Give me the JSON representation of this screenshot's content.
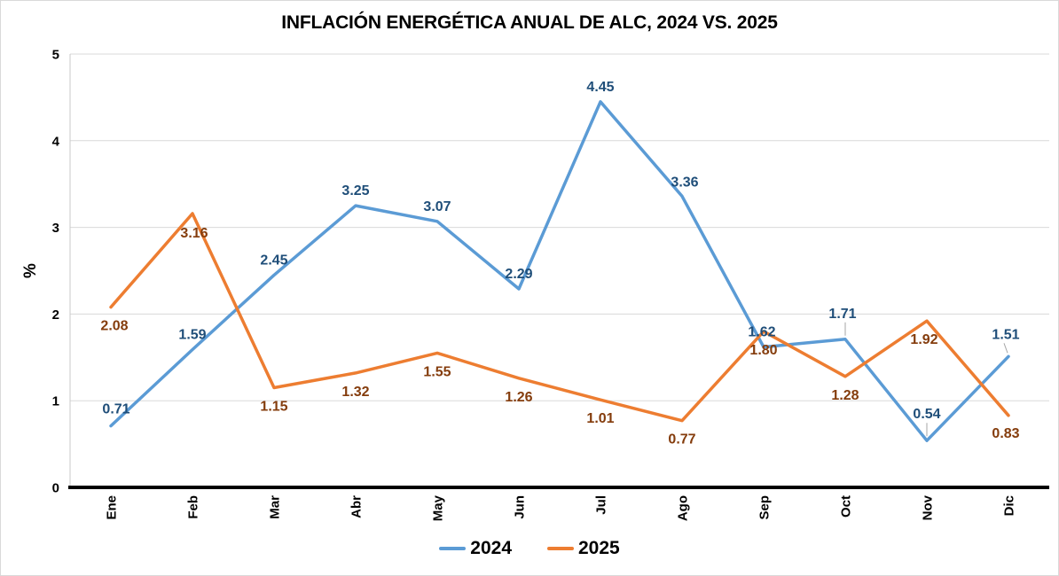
{
  "page": {
    "background": "#FFFFFF",
    "border_color": "#D9D9D9"
  },
  "chart_data": {
    "type": "line",
    "title": "INFLACIÓN ENERGÉTICA ANUAL DE ALC, 2024 VS. 2025",
    "xlabel": "",
    "ylabel": "%",
    "ylim": [
      0,
      5
    ],
    "yticks": [
      "0",
      "1",
      "2",
      "3",
      "4",
      "5"
    ],
    "grid": true,
    "legend_position": "bottom-center",
    "categories": [
      "Ene",
      "Feb",
      "Mar",
      "Abr",
      "May",
      "Jun",
      "Jul",
      "Ago",
      "Sep",
      "Oct",
      "Nov",
      "Dic"
    ],
    "series": [
      {
        "name": "2024",
        "color": "#5B9BD5",
        "label_color": "#1F4E79",
        "values": [
          0.71,
          1.59,
          2.45,
          3.25,
          3.07,
          2.29,
          4.45,
          3.36,
          1.62,
          1.71,
          0.54,
          1.51
        ],
        "labels": [
          "0.71",
          "1.59",
          "2.45",
          "3.25",
          "3.07",
          "2.29",
          "4.45",
          "3.36",
          "1.62",
          "1.71",
          "0.54",
          "1.51"
        ]
      },
      {
        "name": "2025",
        "color": "#ED7D31",
        "label_color": "#843C0C",
        "values": [
          2.08,
          3.16,
          1.15,
          1.32,
          1.55,
          1.26,
          1.01,
          0.77,
          1.8,
          1.28,
          1.92,
          0.83
        ],
        "labels": [
          "2.08",
          "3.16",
          "1.15",
          "1.32",
          "1.55",
          "1.26",
          "1.01",
          "0.77",
          "1.80",
          "1.28",
          "1.92",
          "0.83"
        ]
      }
    ]
  },
  "legend": {
    "items": [
      {
        "label": "2024",
        "color": "#5B9BD5"
      },
      {
        "label": "2025",
        "color": "#ED7D31"
      }
    ]
  },
  "style": {
    "gridline_color": "#D9D9D9",
    "spine_color": "#C9C9C9",
    "axis_color": "#000000",
    "tick_text_color": "#000000",
    "leader_color": "#A6A6A6"
  }
}
